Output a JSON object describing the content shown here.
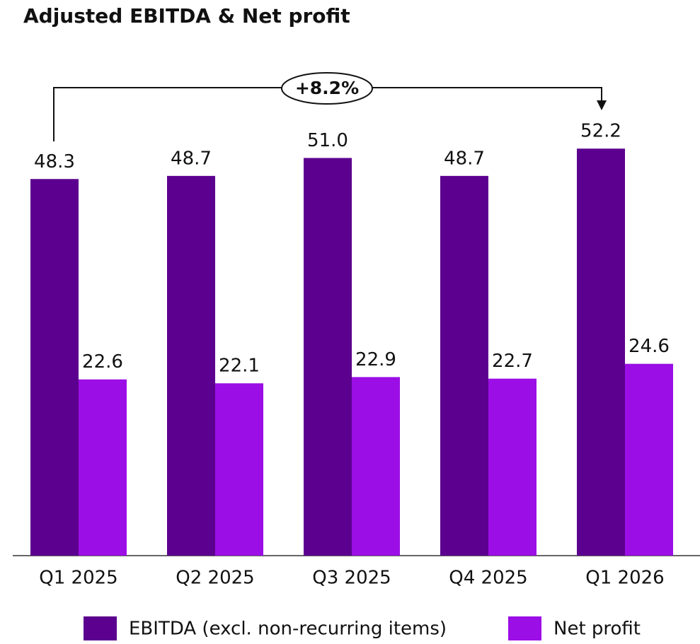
{
  "chart_data": {
    "type": "bar",
    "title": "Adjusted EBITDA & Net profit",
    "annotation": "+8.2%",
    "categories": [
      "Q1 2025",
      "Q2 2025",
      "Q3 2025",
      "Q4 2025",
      "Q1 2026"
    ],
    "series": [
      {
        "name": "EBITDA (excl. non-recurring items)",
        "color": "#5c008f",
        "values": [
          48.3,
          48.7,
          51.0,
          48.7,
          52.2
        ],
        "value_labels": [
          "48.3",
          "48.7",
          "51.0",
          "48.7",
          "52.2"
        ]
      },
      {
        "name": "Net profit",
        "color": "#9b0ee6",
        "values": [
          22.6,
          22.1,
          22.9,
          22.7,
          24.6
        ],
        "value_labels": [
          "22.6",
          "22.1",
          "22.9",
          "22.7",
          "24.6"
        ]
      }
    ],
    "legend": "bottom"
  }
}
